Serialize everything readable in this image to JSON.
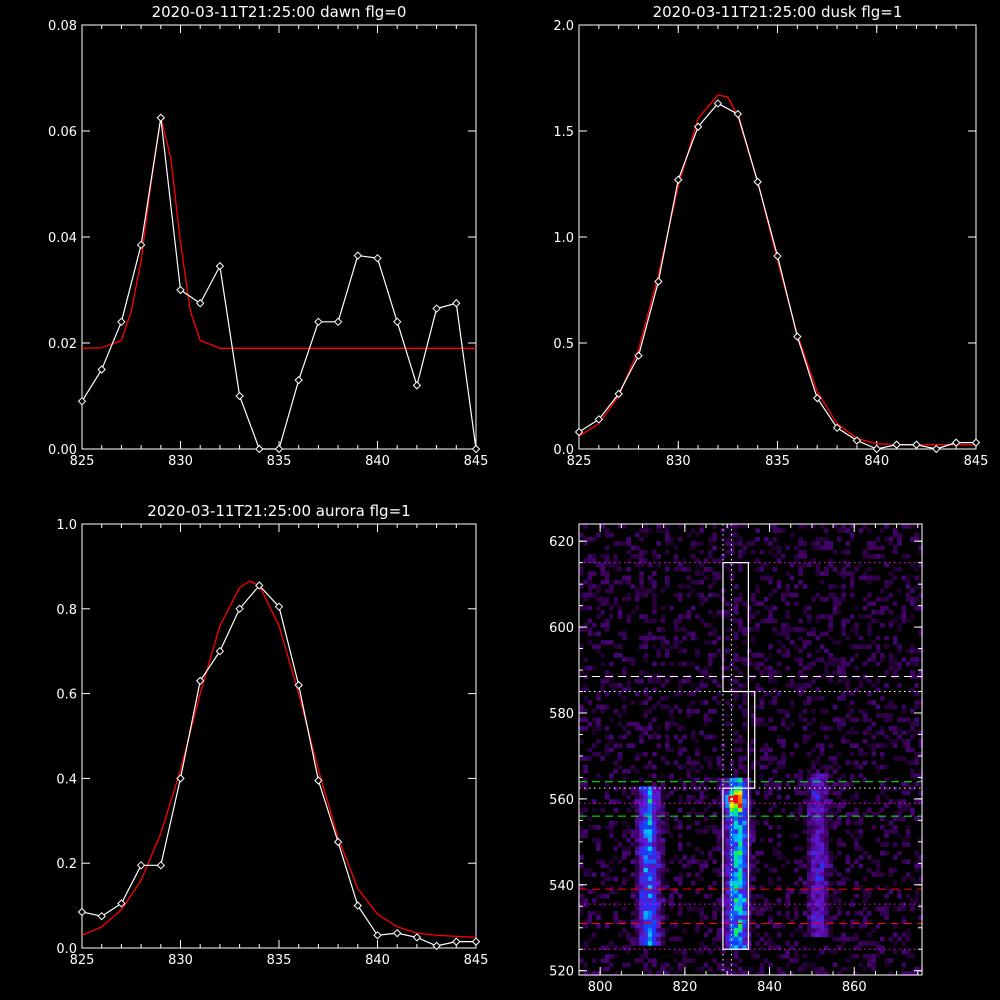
{
  "colors": {
    "background": "#000000",
    "axes": "#ffffff",
    "data": "#ffffff",
    "fit": "#ff0000",
    "green_line": "#00ff00",
    "magenta_line": "#ff00ff"
  },
  "chart_data": [
    {
      "type": "line",
      "title": "2020-03-11T21:25:00 dawn flg=0",
      "xlim": [
        825,
        845
      ],
      "ylim": [
        0,
        0.08
      ],
      "xticks": [
        "825",
        "830",
        "835",
        "840",
        "845"
      ],
      "yticks": [
        "0.00",
        "0.02",
        "0.04",
        "0.06",
        "0.08"
      ],
      "series": [
        {
          "x": [
            825,
            826,
            827,
            828,
            829,
            830,
            831,
            832,
            833,
            834,
            835,
            836,
            837,
            838,
            839,
            840,
            841,
            842,
            843,
            844,
            845
          ],
          "y": [
            0.009,
            0.015,
            0.024,
            0.0385,
            0.0625,
            0.03,
            0.0275,
            0.0345,
            0.01,
            0.0,
            0.0,
            0.013,
            0.024,
            0.024,
            0.0365,
            0.036,
            0.024,
            0.012,
            0.0265,
            0.0275,
            0.0
          ]
        },
        {
          "x": [
            825,
            826,
            827,
            827.5,
            828,
            828.5,
            829,
            829.5,
            830,
            830.5,
            831,
            832,
            834,
            836,
            838,
            840,
            842,
            845
          ],
          "y": [
            0.019,
            0.0191,
            0.0205,
            0.026,
            0.0355,
            0.05,
            0.0625,
            0.055,
            0.039,
            0.026,
            0.0205,
            0.019,
            0.019,
            0.019,
            0.019,
            0.019,
            0.019,
            0.019
          ]
        }
      ]
    },
    {
      "type": "line",
      "title": "2020-03-11T21:25:00 dusk flg=1",
      "xlim": [
        825,
        845
      ],
      "ylim": [
        0,
        2.0
      ],
      "xticks": [
        "825",
        "830",
        "835",
        "840",
        "845"
      ],
      "yticks": [
        "0.0",
        "0.5",
        "1.0",
        "1.5",
        "2.0"
      ],
      "series": [
        {
          "x": [
            825,
            826,
            827,
            828,
            829,
            830,
            831,
            832,
            833,
            834,
            835,
            836,
            837,
            838,
            839,
            840,
            841,
            842,
            843,
            844,
            845
          ],
          "y": [
            0.08,
            0.14,
            0.26,
            0.44,
            0.79,
            1.27,
            1.52,
            1.63,
            1.58,
            1.26,
            0.91,
            0.53,
            0.24,
            0.1,
            0.04,
            0.0,
            0.02,
            0.02,
            0.0,
            0.03,
            0.03
          ]
        },
        {
          "x": [
            825,
            826,
            827,
            828,
            829,
            830,
            831,
            832,
            832.5,
            833,
            834,
            835,
            836,
            837,
            838,
            839,
            840,
            841,
            842,
            845
          ],
          "y": [
            0.06,
            0.12,
            0.25,
            0.47,
            0.82,
            1.24,
            1.56,
            1.67,
            1.66,
            1.57,
            1.26,
            0.89,
            0.54,
            0.27,
            0.12,
            0.05,
            0.025,
            0.02,
            0.02,
            0.02
          ]
        }
      ]
    },
    {
      "type": "line",
      "title": "2020-03-11T21:25:00 aurora flg=1",
      "xlim": [
        825,
        845
      ],
      "ylim": [
        0,
        1.0
      ],
      "xticks": [
        "825",
        "830",
        "835",
        "840",
        "845"
      ],
      "yticks": [
        "0.0",
        "0.2",
        "0.4",
        "0.6",
        "0.8",
        "1.0"
      ],
      "series": [
        {
          "x": [
            825,
            826,
            827,
            828,
            829,
            830,
            831,
            832,
            833,
            834,
            835,
            836,
            837,
            838,
            839,
            840,
            841,
            842,
            843,
            844,
            845
          ],
          "y": [
            0.085,
            0.075,
            0.105,
            0.195,
            0.195,
            0.4,
            0.63,
            0.7,
            0.8,
            0.855,
            0.805,
            0.62,
            0.395,
            0.25,
            0.1,
            0.03,
            0.035,
            0.025,
            0.005,
            0.015,
            0.015
          ]
        },
        {
          "x": [
            825,
            826,
            827,
            828,
            829,
            830,
            831,
            832,
            833,
            833.5,
            834,
            835,
            836,
            837,
            838,
            839,
            840,
            841,
            842,
            843,
            845
          ],
          "y": [
            0.03,
            0.05,
            0.09,
            0.16,
            0.27,
            0.42,
            0.6,
            0.76,
            0.85,
            0.865,
            0.855,
            0.76,
            0.6,
            0.42,
            0.26,
            0.14,
            0.08,
            0.05,
            0.035,
            0.03,
            0.025
          ]
        }
      ]
    },
    {
      "type": "heatmap",
      "title": "",
      "xlim": [
        795,
        876
      ],
      "ylim": [
        519,
        624
      ],
      "xticks": [
        "800",
        "820",
        "840",
        "860"
      ],
      "yticks": [
        "520",
        "540",
        "560",
        "580",
        "600",
        "620"
      ],
      "emission_bands": [
        {
          "x_center": 811,
          "y_range": [
            526,
            563
          ],
          "intensity": 0.55
        },
        {
          "x_center": 832,
          "y_range": [
            525,
            565
          ],
          "intensity": 0.7
        },
        {
          "x_center": 851,
          "y_range": [
            528,
            566
          ],
          "intensity": 0.3
        }
      ],
      "peak": {
        "x": 831,
        "y": 560
      },
      "boxes": [
        {
          "x": [
            829,
            835
          ],
          "y": [
            585,
            615
          ]
        },
        {
          "x": [
            835,
            836.5
          ],
          "y": [
            562.5,
            585
          ]
        },
        {
          "x": [
            829,
            835
          ],
          "y": [
            525,
            562.5
          ]
        }
      ],
      "hlines": [
        {
          "y": 588.5,
          "color": "#ffffff",
          "style": "dashed"
        },
        {
          "y": 564,
          "color": "#00ff00",
          "style": "dashed"
        },
        {
          "y": 556,
          "color": "#00ff00",
          "style": "dashed"
        },
        {
          "y": 539,
          "color": "#ff0000",
          "style": "dashed"
        },
        {
          "y": 531,
          "color": "#ff0000",
          "style": "dashed"
        },
        {
          "y": 615,
          "color": "#ff00ff",
          "style": "dotted"
        },
        {
          "y": 585,
          "color": "#ffffff",
          "style": "dotted"
        },
        {
          "y": 562.5,
          "color": "#ffffff",
          "style": "dotted"
        },
        {
          "y": 559,
          "color": "#ff00ff",
          "style": "dotted"
        },
        {
          "y": 535.5,
          "color": "#ff00ff",
          "style": "dotted"
        },
        {
          "y": 525,
          "color": "#ff00ff",
          "style": "dotted"
        }
      ],
      "vlines": [
        829,
        831
      ]
    }
  ]
}
